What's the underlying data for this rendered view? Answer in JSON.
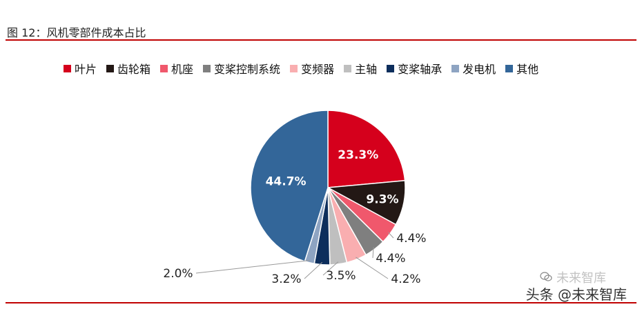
{
  "figure": {
    "title": "图 12：风机零部件成本占比"
  },
  "watermark": {
    "main": "头条 @未来智库",
    "ghost": "未来智库"
  },
  "chart_data": {
    "type": "pie",
    "start_angle_deg": 0,
    "direction": "clockwise",
    "legend_position": "top",
    "slices": [
      {
        "label": "叶片",
        "value": 23.3,
        "display": "23.3%",
        "color": "#d5001c"
      },
      {
        "label": "齿轮箱",
        "value": 9.3,
        "display": "9.3%",
        "color": "#231815"
      },
      {
        "label": "机座",
        "value": 4.4,
        "display": "4.4%",
        "color": "#f0586c"
      },
      {
        "label": "变桨控制系统",
        "value": 4.4,
        "display": "4.4%",
        "color": "#7f7f7f"
      },
      {
        "label": "变频器",
        "value": 4.2,
        "display": "4.2%",
        "color": "#f9aeb0"
      },
      {
        "label": "主轴",
        "value": 3.5,
        "display": "3.5%",
        "color": "#bfbfbf"
      },
      {
        "label": "变桨轴承",
        "value": 3.2,
        "display": "3.2%",
        "color": "#0d2e5c"
      },
      {
        "label": "发电机",
        "value": 2.0,
        "display": "2.0%",
        "color": "#8ea4c2"
      },
      {
        "label": "其他",
        "value": 44.7,
        "display": "44.7%",
        "color": "#336699"
      }
    ]
  }
}
